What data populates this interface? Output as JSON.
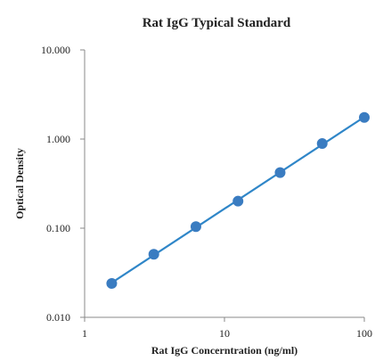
{
  "chart_data": {
    "type": "scatter",
    "title": "Rat IgG Typical  Standard",
    "xlabel": "Rat IgG  Concerntration  (ng/ml)",
    "ylabel": "Optical Density",
    "xscale": "log",
    "yscale": "log",
    "xlim": [
      1,
      100
    ],
    "ylim": [
      0.01,
      10
    ],
    "x_ticks": [
      1,
      10,
      100
    ],
    "x_tick_labels": [
      "1",
      "10",
      "100"
    ],
    "y_ticks": [
      0.01,
      0.1,
      1,
      10
    ],
    "y_tick_labels": [
      "0.010",
      "0.100",
      "1.000",
      "10.000"
    ],
    "grid": false,
    "legend": "none",
    "series": [
      {
        "x": [
          1.5625,
          3.125,
          6.25,
          12.5,
          25,
          50,
          100
        ],
        "y": [
          0.024,
          0.051,
          0.104,
          0.201,
          0.42,
          0.89,
          1.75
        ],
        "marker_color": "#3a7cc1",
        "line_color": "#2f86c8",
        "trendline": true
      }
    ]
  }
}
